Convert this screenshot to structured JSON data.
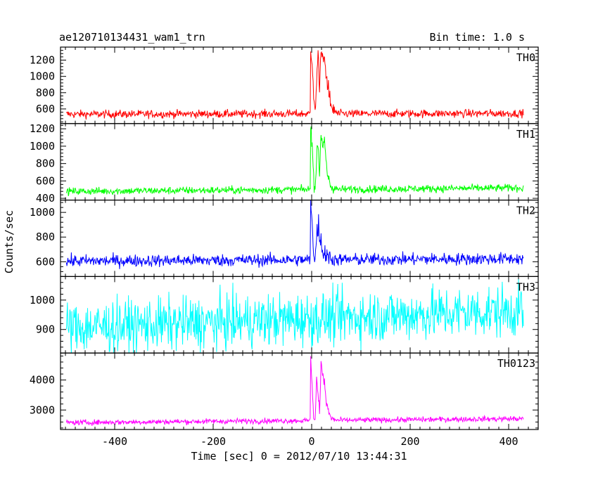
{
  "chart_data": {
    "type": "line",
    "title": "ae120710134431_wam1_trn",
    "bin_time_label": "Bin time: 1.0 s",
    "xlabel": "Time [sec] 0 = 2012/07/10 13:44:31",
    "ylabel": "Counts/sec",
    "xlim": [
      -510,
      460
    ],
    "x_ticks": [
      -400,
      -200,
      0,
      200,
      400
    ],
    "x_range_data": [
      -498,
      430
    ],
    "bin_seconds": 1.0,
    "panels": [
      {
        "name": "TH0",
        "color": "#ff0000",
        "ylim": [
          420,
          1360
        ],
        "y_ticks": [
          600,
          800,
          1000,
          1200
        ],
        "baseline_start": 535,
        "baseline_end": 545,
        "noise": 25,
        "burst": [
          [
            -2,
            1360
          ],
          [
            1,
            1180
          ],
          [
            4,
            700
          ],
          [
            7,
            560
          ],
          [
            10,
            900
          ],
          [
            13,
            1280
          ],
          [
            16,
            900
          ],
          [
            19,
            1330
          ],
          [
            22,
            1180
          ],
          [
            26,
            1200
          ],
          [
            30,
            1000
          ],
          [
            34,
            850
          ],
          [
            40,
            620
          ],
          [
            50,
            555
          ]
        ]
      },
      {
        "name": "TH1",
        "color": "#00ff00",
        "ylim": [
          380,
          1260
        ],
        "y_ticks": [
          400,
          600,
          800,
          1000,
          1200
        ],
        "baseline_start": 480,
        "baseline_end": 520,
        "noise": 22,
        "burst": [
          [
            -2,
            1260
          ],
          [
            1,
            1000
          ],
          [
            4,
            600
          ],
          [
            7,
            500
          ],
          [
            10,
            850
          ],
          [
            13,
            1000
          ],
          [
            16,
            700
          ],
          [
            19,
            1150
          ],
          [
            22,
            1000
          ],
          [
            26,
            1050
          ],
          [
            30,
            800
          ],
          [
            34,
            600
          ],
          [
            40,
            520
          ],
          [
            50,
            490
          ]
        ]
      },
      {
        "name": "TH2",
        "color": "#0000ff",
        "ylim": [
          480,
          1100
        ],
        "y_ticks": [
          600,
          800,
          1000
        ],
        "baseline_start": 605,
        "baseline_end": 625,
        "noise": 25,
        "burst": [
          [
            -2,
            1100
          ],
          [
            1,
            900
          ],
          [
            4,
            700
          ],
          [
            7,
            620
          ],
          [
            10,
            800
          ],
          [
            14,
            900
          ],
          [
            18,
            780
          ],
          [
            22,
            700
          ],
          [
            28,
            650
          ],
          [
            40,
            620
          ]
        ]
      },
      {
        "name": "TH3",
        "color": "#00ffff",
        "ylim": [
          820,
          1080
        ],
        "y_ticks": [
          900,
          1000
        ],
        "baseline_start": 905,
        "baseline_end": 965,
        "noise": 45,
        "burst": []
      },
      {
        "name": "TH0123",
        "color": "#ff00ff",
        "ylim": [
          2350,
          4900
        ],
        "y_ticks": [
          3000,
          4000
        ],
        "baseline_start": 2580,
        "baseline_end": 2710,
        "noise": 45,
        "burst": [
          [
            -2,
            4900
          ],
          [
            1,
            3800
          ],
          [
            4,
            2700
          ],
          [
            7,
            2600
          ],
          [
            10,
            3900
          ],
          [
            13,
            3600
          ],
          [
            16,
            2900
          ],
          [
            19,
            4600
          ],
          [
            22,
            4200
          ],
          [
            26,
            4000
          ],
          [
            30,
            3200
          ],
          [
            34,
            2900
          ],
          [
            40,
            2700
          ],
          [
            50,
            2640
          ]
        ]
      }
    ]
  }
}
